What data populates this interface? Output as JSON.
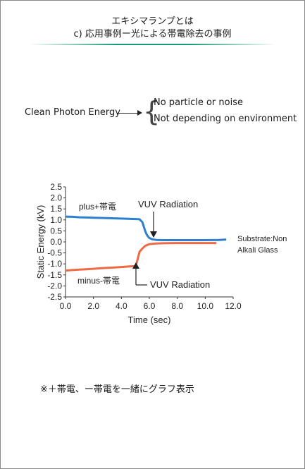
{
  "header": {
    "title": "エキシマランプとは",
    "subtitle": "c) 応用事例ー光による帯電除去の事例"
  },
  "feature": {
    "label": "Clean Photon Energy",
    "items": [
      "No particle or noise",
      "Not depending on environment"
    ]
  },
  "colors": {
    "plus": "#2f7fcf",
    "minus": "#ee6a45",
    "accent_rule": "#1a9a74"
  },
  "chart_data": {
    "type": "line",
    "xlabel": "Time (sec)",
    "ylabel": "Static Energy (kV)",
    "xlim": [
      0,
      12
    ],
    "ylim": [
      -2.5,
      2.5
    ],
    "xticks": [
      "0.0",
      "2.0",
      "4.0",
      "6.0",
      "8.0",
      "10.0",
      "12.0"
    ],
    "yticks": [
      "2.5",
      "2.0",
      "1.5",
      "1.0",
      "0.5",
      "0.0",
      "-0.5",
      "-1.0",
      "-1.5",
      "-2.0",
      "-2.5"
    ],
    "grid": false,
    "series": [
      {
        "name": "plus+帯電",
        "color": "#2f7fcf",
        "points": [
          [
            0.0,
            1.15
          ],
          [
            0.5,
            1.14
          ],
          [
            1.0,
            1.12
          ],
          [
            1.5,
            1.11
          ],
          [
            2.0,
            1.1
          ],
          [
            2.5,
            1.09
          ],
          [
            3.0,
            1.08
          ],
          [
            3.5,
            1.07
          ],
          [
            4.0,
            1.06
          ],
          [
            4.5,
            1.05
          ],
          [
            5.0,
            1.04
          ],
          [
            5.3,
            1.03
          ],
          [
            5.5,
            0.9
          ],
          [
            5.6,
            0.7
          ],
          [
            5.7,
            0.5
          ],
          [
            5.8,
            0.35
          ],
          [
            5.9,
            0.25
          ],
          [
            6.0,
            0.18
          ],
          [
            6.2,
            0.12
          ],
          [
            6.5,
            0.09
          ],
          [
            7.0,
            0.08
          ],
          [
            8.0,
            0.08
          ],
          [
            9.0,
            0.08
          ],
          [
            10.0,
            0.08
          ],
          [
            11.0,
            0.09
          ],
          [
            11.5,
            0.11
          ]
        ]
      },
      {
        "name": "minus-帯電",
        "color": "#ee6a45",
        "points": [
          [
            0.0,
            -1.3
          ],
          [
            0.5,
            -1.28
          ],
          [
            1.0,
            -1.26
          ],
          [
            1.5,
            -1.24
          ],
          [
            2.0,
            -1.22
          ],
          [
            2.5,
            -1.2
          ],
          [
            3.0,
            -1.18
          ],
          [
            3.5,
            -1.16
          ],
          [
            4.0,
            -1.14
          ],
          [
            4.5,
            -1.12
          ],
          [
            5.0,
            -1.1
          ],
          [
            5.1,
            -0.95
          ],
          [
            5.2,
            -0.7
          ],
          [
            5.3,
            -0.45
          ],
          [
            5.5,
            -0.3
          ],
          [
            5.7,
            -0.18
          ],
          [
            6.0,
            -0.1
          ],
          [
            6.5,
            -0.07
          ],
          [
            7.0,
            -0.06
          ],
          [
            8.0,
            -0.05
          ],
          [
            9.0,
            -0.05
          ],
          [
            10.0,
            -0.05
          ],
          [
            10.8,
            -0.05
          ]
        ]
      }
    ],
    "annotations": {
      "vuv_top": "VUV Radiation",
      "vuv_bottom": "VUV Radiation",
      "substrate_line1": "Substrate:Non",
      "substrate_line2": "Alkali Glass"
    }
  },
  "note": "※＋帯電、ー帯電を一緒にグラフ表示"
}
